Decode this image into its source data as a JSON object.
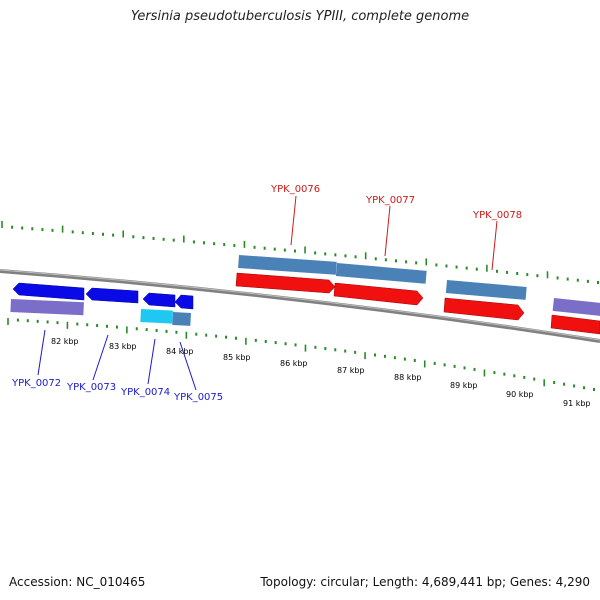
{
  "title": "Yersinia pseudotuberculosis YPIII, complete genome",
  "accession": "Accession: NC_010465",
  "summary": "Topology: circular; Length: 4,689,441 bp; Genes: 4,290",
  "colors": {
    "backbone": "#808080",
    "tick": "#2a8a2a",
    "minus_gene": "#0a0ae6",
    "minus_cds": "#7b6ec8",
    "minus_gene_light": "#1ec8f0",
    "plus_gene": "#4a82b8",
    "plus_cds": "#f01010",
    "label_minus": "#1a1ad0",
    "label_plus": "#cc1a1a"
  },
  "kbp_labels": [
    "82 kbp",
    "83 kbp",
    "84 kbp",
    "85 kbp",
    "86 kbp",
    "87 kbp",
    "88 kbp",
    "89 kbp",
    "90 kbp",
    "91 kbp"
  ],
  "genes_minus": [
    "YPK_0072",
    "YPK_0073",
    "YPK_0074",
    "YPK_0075"
  ],
  "genes_plus": [
    "YPK_0076",
    "YPK_0077",
    "YPK_0078"
  ]
}
